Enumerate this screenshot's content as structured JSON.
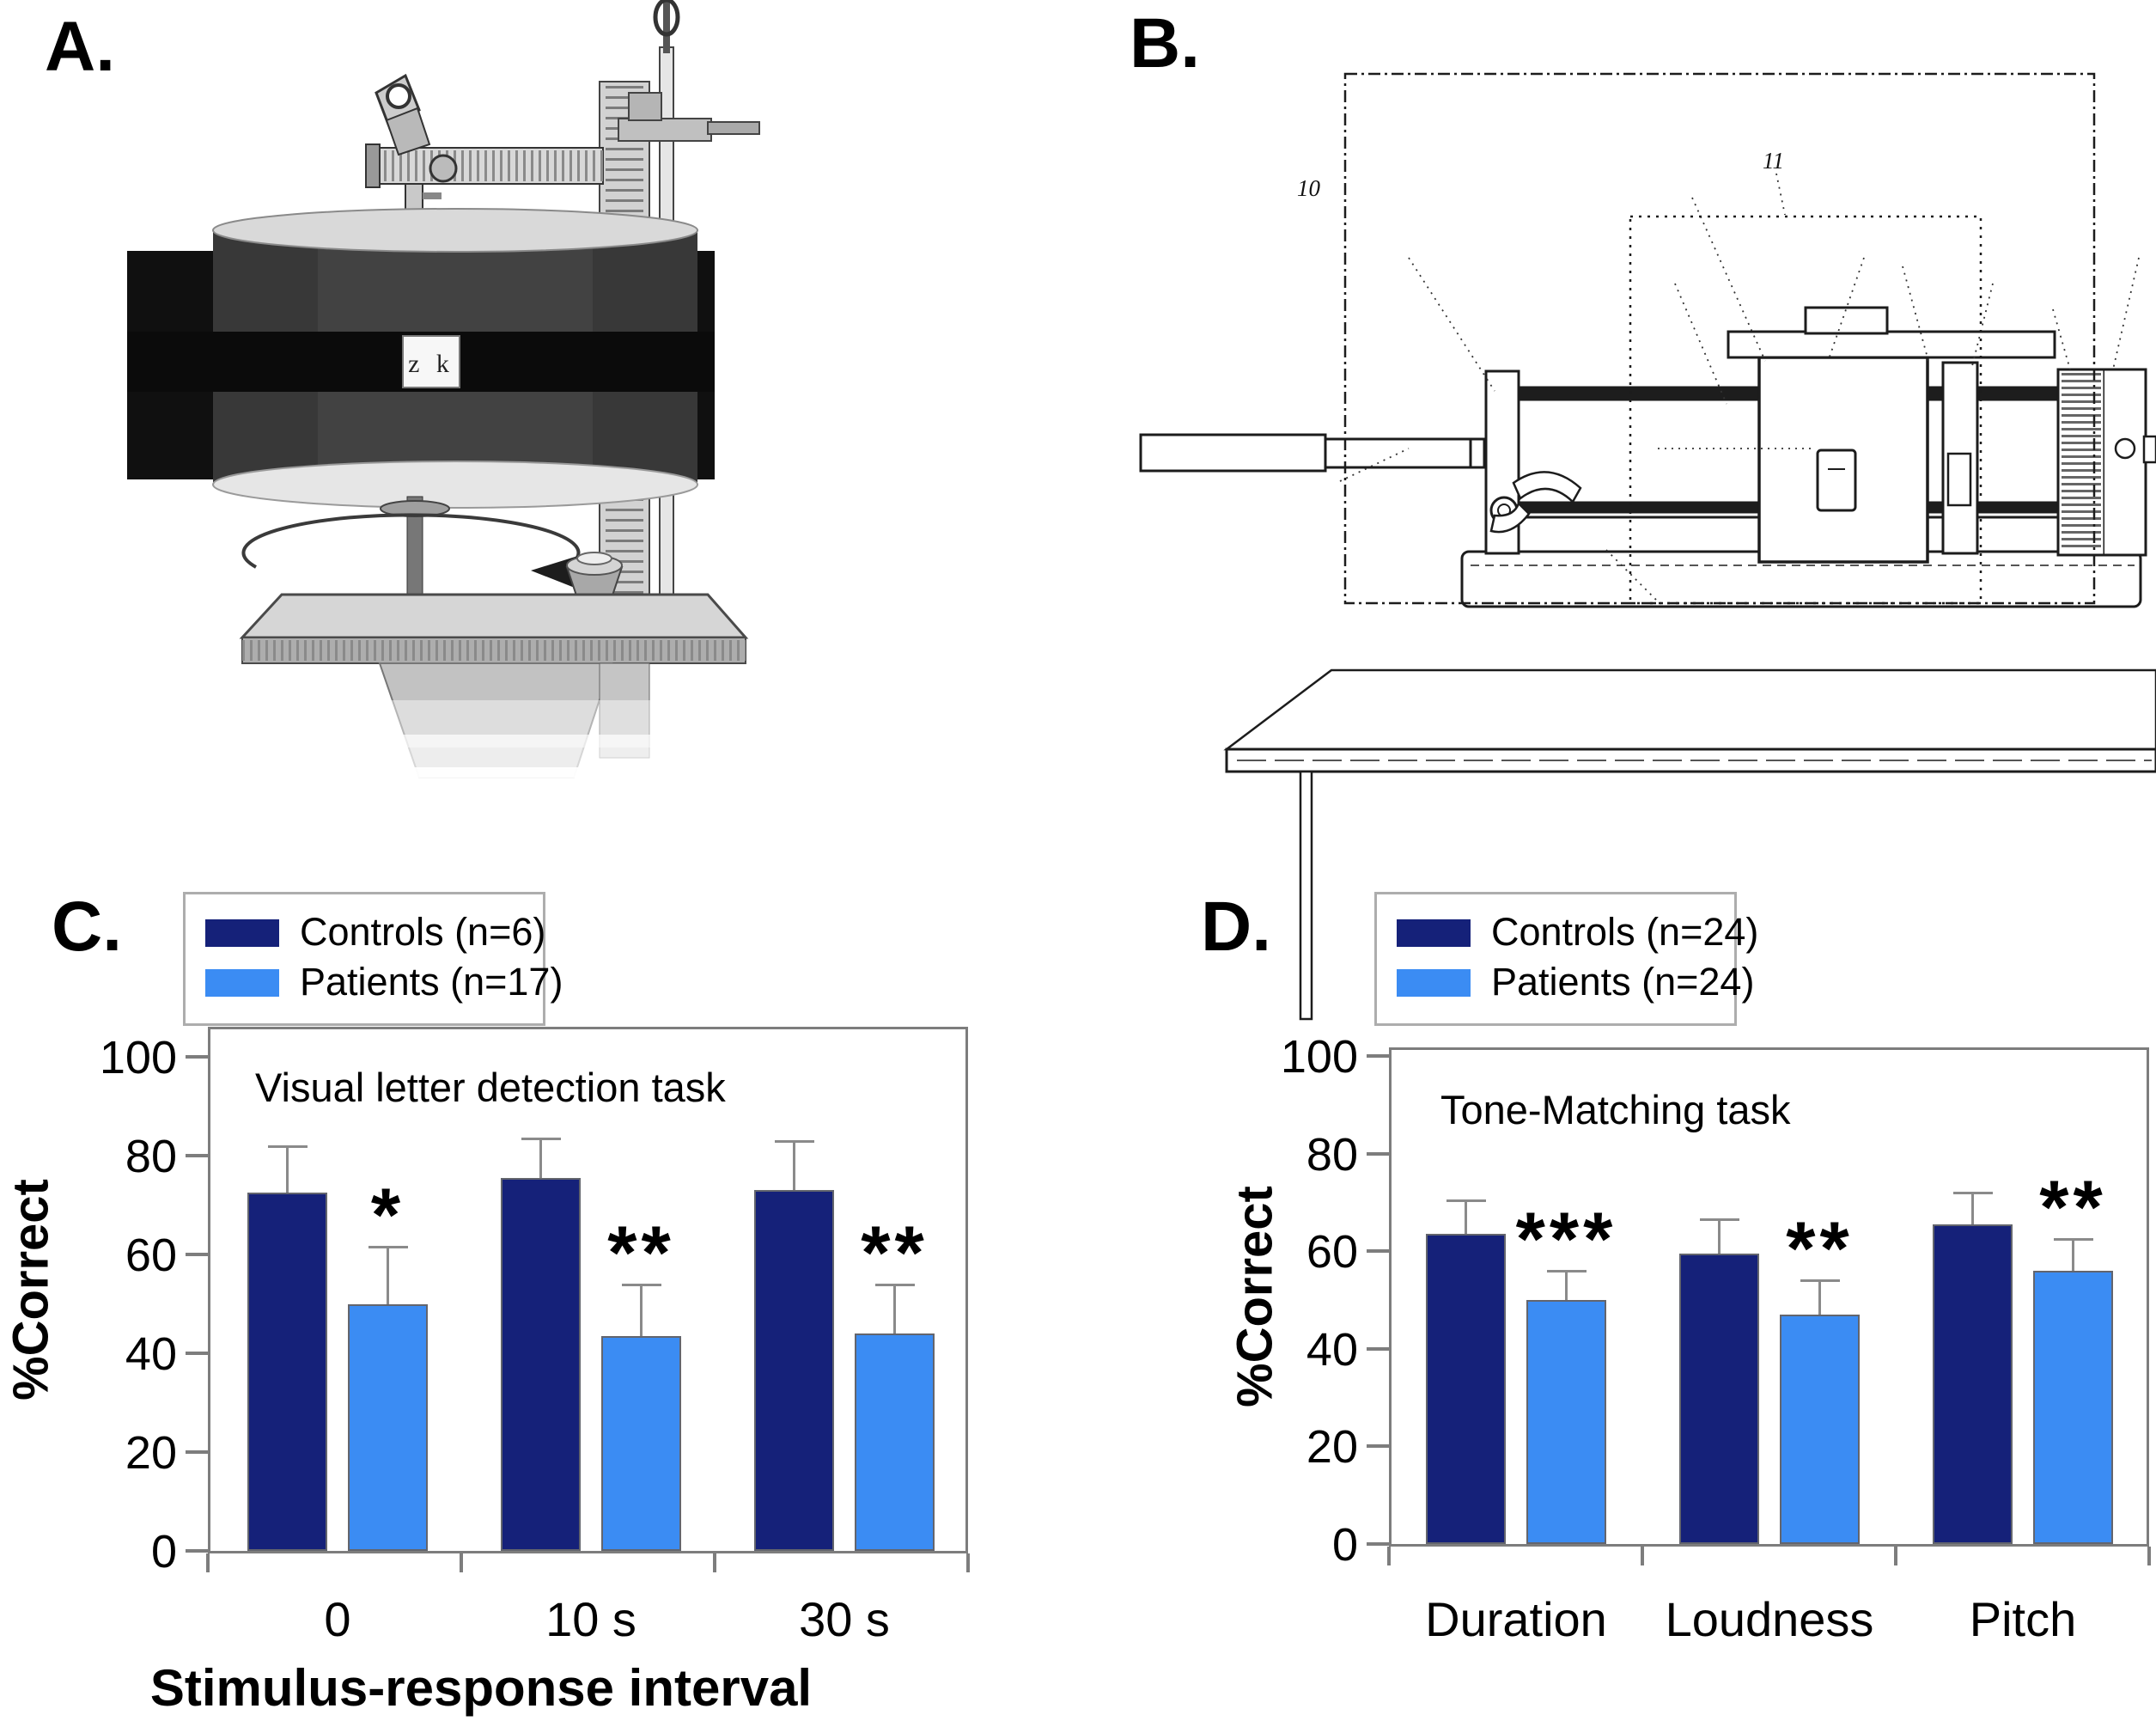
{
  "figure": {
    "panel_labels": {
      "a": "A.",
      "b": "B.",
      "c": "C.",
      "d": "D."
    }
  },
  "panel_a": {
    "drum_window_label": "z k"
  },
  "panel_b": {
    "outer_enclosure_label": "10",
    "inner_enclosure_label": "11"
  },
  "colors": {
    "controls_bar": "#152179",
    "patients_bar": "#3B8CF3",
    "axis_gray": "#7D7D7D",
    "error_bar_gray": "#8A8A8A",
    "significance_black": "#000000"
  },
  "chart_data": [
    {
      "type": "bar",
      "panel": "C",
      "title": "Visual letter detection task",
      "ylabel": "%Correct",
      "xlabel": "Stimulus-response interval",
      "ylim": [
        0,
        100
      ],
      "yticks": [
        0,
        20,
        40,
        60,
        80,
        100
      ],
      "grid": false,
      "legend_position": "above-plot-left",
      "categories": [
        "0",
        "10 s",
        "30 s"
      ],
      "series": [
        {
          "name": "Controls (n=6)",
          "color": "#152179",
          "values": [
            72.5,
            75.5,
            73
          ],
          "upper_errors": [
            9.5,
            8,
            10
          ]
        },
        {
          "name": "Patients (n=17)",
          "color": "#3B8CF3",
          "values": [
            50,
            43.5,
            44
          ],
          "upper_errors": [
            11.5,
            10.5,
            10
          ]
        }
      ],
      "significance_over_patients": [
        "*",
        "**",
        "**"
      ]
    },
    {
      "type": "bar",
      "panel": "D",
      "title": "Tone-Matching task",
      "ylabel": "%Correct",
      "xlabel": "",
      "ylim": [
        0,
        100
      ],
      "yticks": [
        0,
        20,
        40,
        60,
        80,
        100
      ],
      "grid": false,
      "legend_position": "above-plot-left",
      "categories": [
        "Duration",
        "Loudness",
        "Pitch"
      ],
      "series": [
        {
          "name": "Controls (n=24)",
          "color": "#152179",
          "values": [
            63.5,
            59.5,
            65.5
          ],
          "upper_errors": [
            7,
            7,
            6.5
          ]
        },
        {
          "name": "Patients (n=24)",
          "color": "#3B8CF3",
          "values": [
            50,
            47,
            56
          ],
          "upper_errors": [
            6,
            7,
            6.5
          ]
        }
      ],
      "significance_over_patients": [
        "***",
        "**",
        "**"
      ]
    }
  ]
}
